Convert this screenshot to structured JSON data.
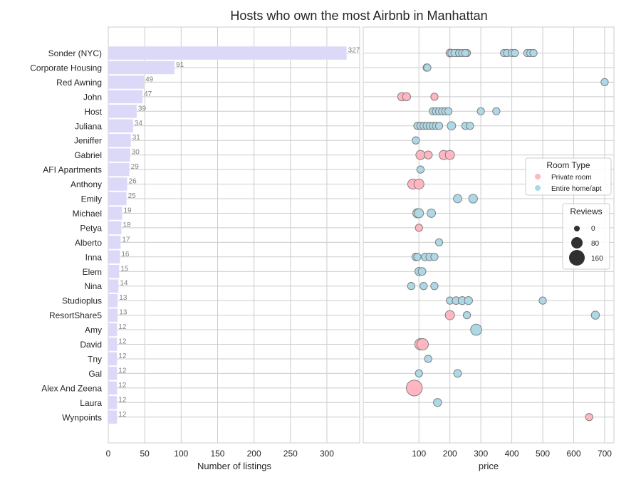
{
  "title": "Hosts who own the most Airbnb in Manhattan",
  "chart_data": [
    {
      "type": "bar",
      "orientation": "horizontal",
      "title": "Hosts who own the most Airbnb in Manhattan",
      "xlabel": "Number of listings",
      "ylabel": "",
      "xlim": [
        0,
        345
      ],
      "xticks": [
        0,
        50,
        100,
        150,
        200,
        250,
        300
      ],
      "grid": true,
      "bar_color": "#dcd9f8",
      "value_label_color": "#808080",
      "categories": [
        "Sonder (NYC)",
        "Corporate Housing",
        "Red Awning",
        "John",
        "Host",
        "Juliana",
        "Jeniffer",
        "Gabriel",
        "AFI Apartments",
        "Anthony",
        "Emily",
        "Michael",
        "Petya",
        "Alberto",
        "Inna",
        "Elem",
        "Nina",
        "Studioplus",
        "ResortShare5",
        "Amy",
        "David",
        "Tny",
        "Gal",
        "Alex And Zeena",
        "Laura",
        "Wynpoints"
      ],
      "values": [
        327,
        91,
        49,
        47,
        39,
        34,
        31,
        30,
        29,
        26,
        25,
        19,
        18,
        17,
        16,
        15,
        14,
        13,
        13,
        12,
        12,
        12,
        12,
        12,
        12,
        12
      ]
    },
    {
      "type": "scatter",
      "xlabel": "price",
      "ylabel": "",
      "xlim": [
        -80,
        730
      ],
      "xticks": [
        100,
        200,
        300,
        400,
        500,
        600,
        700
      ],
      "grid": true,
      "shares_y_with": "Hosts",
      "colors": {
        "Private room": "#ffb6c1",
        "Entire home/apt": "#add8e6"
      },
      "marker_edge_color": "#808080",
      "legend_room": {
        "title": "Room Type",
        "placement": "right",
        "entries": [
          {
            "label": "Private room",
            "color": "#ffb6c1"
          },
          {
            "label": "Entire home/apt",
            "color": "#add8e6"
          }
        ]
      },
      "legend_reviews": {
        "title": "Reviews",
        "placement": "right",
        "color": "#303030",
        "entries": [
          {
            "label": "0",
            "value": 0
          },
          {
            "label": "80",
            "value": 80
          },
          {
            "label": "160",
            "value": 160
          }
        ]
      },
      "series": [
        {
          "name": "Private room",
          "points": [
            {
              "host": "Sonder (NYC)",
              "price": 200,
              "reviews": 3
            },
            {
              "host": "Sonder (NYC)",
              "price": 225,
              "reviews": 2
            },
            {
              "host": "Sonder (NYC)",
              "price": 255,
              "reviews": 2
            },
            {
              "host": "John",
              "price": 45,
              "reviews": 5
            },
            {
              "host": "John",
              "price": 60,
              "reviews": 4
            },
            {
              "host": "John",
              "price": 150,
              "reviews": 2
            },
            {
              "host": "Gabriel",
              "price": 105,
              "reviews": 8
            },
            {
              "host": "Gabriel",
              "price": 130,
              "reviews": 4
            },
            {
              "host": "Gabriel",
              "price": 180,
              "reviews": 8
            },
            {
              "host": "Gabriel",
              "price": 200,
              "reviews": 8
            },
            {
              "host": "Anthony",
              "price": 80,
              "reviews": 12
            },
            {
              "host": "Anthony",
              "price": 100,
              "reviews": 12
            },
            {
              "host": "Petya",
              "price": 100,
              "reviews": 2
            },
            {
              "host": "ResortShare5",
              "price": 200,
              "reviews": 8
            },
            {
              "host": "David",
              "price": 105,
              "reviews": 20
            },
            {
              "host": "David",
              "price": 112,
              "reviews": 20
            },
            {
              "host": "Alex And Zeena",
              "price": 85,
              "reviews": 60
            },
            {
              "host": "Wynpoints",
              "price": 650,
              "reviews": 2
            }
          ]
        },
        {
          "name": "Entire home/apt",
          "points": [
            {
              "host": "Sonder (NYC)",
              "price": 205,
              "reviews": 2
            },
            {
              "host": "Sonder (NYC)",
              "price": 215,
              "reviews": 2
            },
            {
              "host": "Sonder (NYC)",
              "price": 230,
              "reviews": 2
            },
            {
              "host": "Sonder (NYC)",
              "price": 240,
              "reviews": 2
            },
            {
              "host": "Sonder (NYC)",
              "price": 250,
              "reviews": 2
            },
            {
              "host": "Sonder (NYC)",
              "price": 375,
              "reviews": 2
            },
            {
              "host": "Sonder (NYC)",
              "price": 385,
              "reviews": 2
            },
            {
              "host": "Sonder (NYC)",
              "price": 400,
              "reviews": 2
            },
            {
              "host": "Sonder (NYC)",
              "price": 410,
              "reviews": 2
            },
            {
              "host": "Sonder (NYC)",
              "price": 450,
              "reviews": 2
            },
            {
              "host": "Sonder (NYC)",
              "price": 460,
              "reviews": 2
            },
            {
              "host": "Sonder (NYC)",
              "price": 470,
              "reviews": 2
            },
            {
              "host": "Corporate Housing",
              "price": 125,
              "reviews": 2
            },
            {
              "host": "Corporate Housing",
              "price": 127,
              "reviews": 2
            },
            {
              "host": "Red Awning",
              "price": 700,
              "reviews": 2
            },
            {
              "host": "Host",
              "price": 145,
              "reviews": 2
            },
            {
              "host": "Host",
              "price": 155,
              "reviews": 2
            },
            {
              "host": "Host",
              "price": 165,
              "reviews": 2
            },
            {
              "host": "Host",
              "price": 175,
              "reviews": 2
            },
            {
              "host": "Host",
              "price": 185,
              "reviews": 2
            },
            {
              "host": "Host",
              "price": 195,
              "reviews": 2
            },
            {
              "host": "Host",
              "price": 300,
              "reviews": 2
            },
            {
              "host": "Host",
              "price": 350,
              "reviews": 2
            },
            {
              "host": "Juliana",
              "price": 95,
              "reviews": 2
            },
            {
              "host": "Juliana",
              "price": 105,
              "reviews": 2
            },
            {
              "host": "Juliana",
              "price": 115,
              "reviews": 2
            },
            {
              "host": "Juliana",
              "price": 125,
              "reviews": 2
            },
            {
              "host": "Juliana",
              "price": 135,
              "reviews": 2
            },
            {
              "host": "Juliana",
              "price": 145,
              "reviews": 2
            },
            {
              "host": "Juliana",
              "price": 155,
              "reviews": 2
            },
            {
              "host": "Juliana",
              "price": 165,
              "reviews": 2
            },
            {
              "host": "Juliana",
              "price": 205,
              "reviews": 5
            },
            {
              "host": "Juliana",
              "price": 250,
              "reviews": 2
            },
            {
              "host": "Juliana",
              "price": 265,
              "reviews": 2
            },
            {
              "host": "Jeniffer",
              "price": 90,
              "reviews": 2
            },
            {
              "host": "AFI Apartments",
              "price": 105,
              "reviews": 2
            },
            {
              "host": "Emily",
              "price": 225,
              "reviews": 5
            },
            {
              "host": "Emily",
              "price": 275,
              "reviews": 6
            },
            {
              "host": "Michael",
              "price": 95,
              "reviews": 8
            },
            {
              "host": "Michael",
              "price": 100,
              "reviews": 8
            },
            {
              "host": "Michael",
              "price": 140,
              "reviews": 5
            },
            {
              "host": "Alberto",
              "price": 165,
              "reviews": 2
            },
            {
              "host": "Inna",
              "price": 90,
              "reviews": 3
            },
            {
              "host": "Inna",
              "price": 95,
              "reviews": 2
            },
            {
              "host": "Inna",
              "price": 120,
              "reviews": 3
            },
            {
              "host": "Inna",
              "price": 135,
              "reviews": 3
            },
            {
              "host": "Inna",
              "price": 150,
              "reviews": 2
            },
            {
              "host": "Elem",
              "price": 100,
              "reviews": 4
            },
            {
              "host": "Elem",
              "price": 110,
              "reviews": 3
            },
            {
              "host": "Nina",
              "price": 75,
              "reviews": 2
            },
            {
              "host": "Nina",
              "price": 115,
              "reviews": 2
            },
            {
              "host": "Nina",
              "price": 150,
              "reviews": 2
            },
            {
              "host": "Studioplus",
              "price": 200,
              "reviews": 2
            },
            {
              "host": "Studioplus",
              "price": 220,
              "reviews": 3
            },
            {
              "host": "Studioplus",
              "price": 240,
              "reviews": 4
            },
            {
              "host": "Studioplus",
              "price": 260,
              "reviews": 4
            },
            {
              "host": "Studioplus",
              "price": 500,
              "reviews": 2
            },
            {
              "host": "ResortShare5",
              "price": 255,
              "reviews": 2
            },
            {
              "host": "ResortShare5",
              "price": 670,
              "reviews": 4
            },
            {
              "host": "Amy",
              "price": 285,
              "reviews": 18
            },
            {
              "host": "Tny",
              "price": 130,
              "reviews": 2
            },
            {
              "host": "Gal",
              "price": 100,
              "reviews": 2
            },
            {
              "host": "Gal",
              "price": 225,
              "reviews": 3
            },
            {
              "host": "Laura",
              "price": 160,
              "reviews": 4
            }
          ]
        }
      ]
    }
  ]
}
